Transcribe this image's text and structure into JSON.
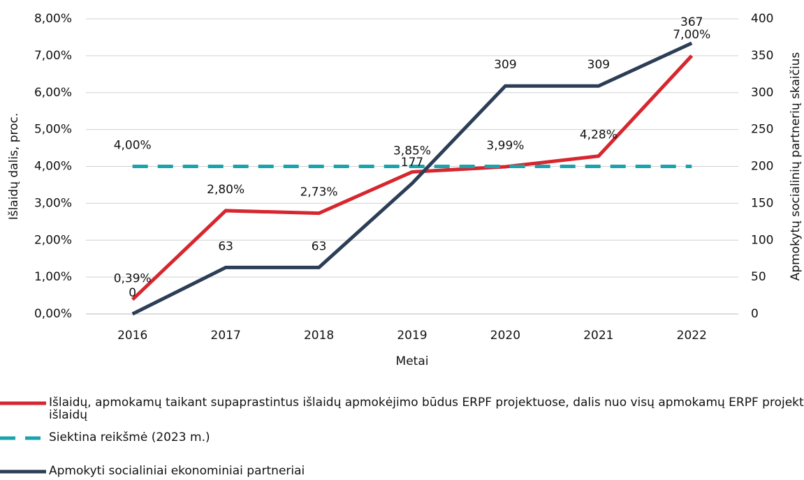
{
  "chart_data": {
    "type": "line",
    "categories": [
      "2016",
      "2017",
      "2018",
      "2019",
      "2020",
      "2021",
      "2022"
    ],
    "x_label": "Metai",
    "y_label": "Išlaidų dalis, proc.",
    "y2_label": "Apmokytų socialinių partnerių skaičius",
    "ylim": [
      0,
      8
    ],
    "yticks": [
      {
        "value": 0,
        "label": "0,00%"
      },
      {
        "value": 1,
        "label": "1,00%"
      },
      {
        "value": 2,
        "label": "2,00%"
      },
      {
        "value": 3,
        "label": "3,00%"
      },
      {
        "value": 4,
        "label": "4,00%"
      },
      {
        "value": 5,
        "label": "5,00%"
      },
      {
        "value": 6,
        "label": "6,00%"
      },
      {
        "value": 7,
        "label": "7,00%"
      },
      {
        "value": 8,
        "label": "8,00%"
      }
    ],
    "y2lim": [
      0,
      400
    ],
    "y2ticks": [
      0,
      50,
      100,
      150,
      200,
      250,
      300,
      350,
      400
    ],
    "grid": true,
    "legend": "bottom",
    "series": [
      {
        "name": "Išlaidų, apmokamų taikant supaprastintus išlaidų apmokėjimo būdus ERPF projektuose, dalis nuo visų apmokamų ERPF projektų išlaidų",
        "color": "#d7262e",
        "dash": false,
        "axis": "y",
        "values": [
          0.39,
          2.8,
          2.73,
          3.85,
          3.99,
          4.28,
          7.0
        ],
        "value_labels": [
          "0,39%",
          "2,80%",
          "2,73%",
          "3,85%",
          "3,99%",
          "4,28%",
          "7,00%"
        ]
      },
      {
        "name": "Siektina reikšmė (2023 m.)",
        "color": "#1aa3ad",
        "dash": true,
        "axis": "y",
        "values": [
          4.0,
          4.0,
          4.0,
          4.0,
          4.0,
          4.0,
          4.0
        ],
        "value_labels": [
          "4,00%",
          null,
          null,
          null,
          null,
          null,
          null
        ]
      },
      {
        "name": "Apmokyti socialiniai ekonominiai partneriai",
        "color": "#2c3e56",
        "dash": false,
        "axis": "y2",
        "values": [
          0,
          63,
          63,
          177,
          309,
          309,
          367
        ]
      }
    ]
  }
}
